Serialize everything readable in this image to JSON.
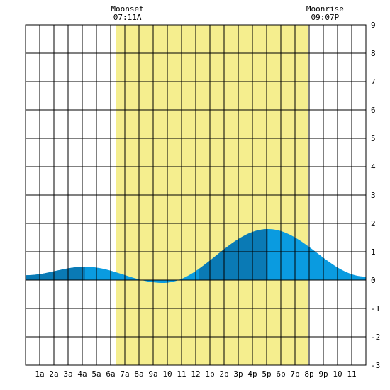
{
  "chart_data": {
    "type": "area",
    "title": "",
    "xlabel": "",
    "ylabel": "",
    "xlim": [
      0,
      24
    ],
    "ylim": [
      -3,
      9
    ],
    "x_tick_labels": [
      {
        "x": 1,
        "label": "1a"
      },
      {
        "x": 2,
        "label": "2a"
      },
      {
        "x": 3,
        "label": "3a"
      },
      {
        "x": 4,
        "label": "4a"
      },
      {
        "x": 5,
        "label": "5a"
      },
      {
        "x": 6,
        "label": "6a"
      },
      {
        "x": 7,
        "label": "7a"
      },
      {
        "x": 8,
        "label": "8a"
      },
      {
        "x": 9,
        "label": "9a"
      },
      {
        "x": 10,
        "label": "10"
      },
      {
        "x": 11,
        "label": "11"
      },
      {
        "x": 12,
        "label": "12"
      },
      {
        "x": 13,
        "label": "1p"
      },
      {
        "x": 14,
        "label": "2p"
      },
      {
        "x": 15,
        "label": "3p"
      },
      {
        "x": 16,
        "label": "4p"
      },
      {
        "x": 17,
        "label": "5p"
      },
      {
        "x": 18,
        "label": "6p"
      },
      {
        "x": 19,
        "label": "7p"
      },
      {
        "x": 20,
        "label": "8p"
      },
      {
        "x": 21,
        "label": "9p"
      },
      {
        "x": 22,
        "label": "10"
      },
      {
        "x": 23,
        "label": "11"
      }
    ],
    "y_tick_labels": [
      "9",
      "8",
      "7",
      "6",
      "5",
      "4",
      "3",
      "2",
      "1",
      "0",
      "-1",
      "-2",
      "-3"
    ],
    "y_ticks": [
      9,
      8,
      7,
      6,
      5,
      4,
      3,
      2,
      1,
      0,
      -1,
      -2,
      -3
    ],
    "daylight": {
      "start": 6.35,
      "end": 19.95,
      "color": "#f5ee8e"
    },
    "annotations": [
      {
        "x": 7.18,
        "line1": "Moonset",
        "line2": "07:11A"
      },
      {
        "x": 21.12,
        "line1": "Moonrise",
        "line2": "09:07P"
      }
    ],
    "tide_extremes": [
      {
        "x": 0,
        "y": 0.17
      },
      {
        "x": 4.2,
        "y": 0.47
      },
      {
        "x": 9.7,
        "y": -0.1
      },
      {
        "x": 17.1,
        "y": 1.8
      },
      {
        "x": 24,
        "y": 0.12
      }
    ],
    "dark_segments": [
      [
        0,
        4.2
      ],
      [
        12.2,
        17.1
      ]
    ],
    "colors": {
      "tide_light": "#0a9be0",
      "tide_dark": "#0a7ab5",
      "grid": "#000000",
      "border": "#000000"
    },
    "grid": true
  }
}
